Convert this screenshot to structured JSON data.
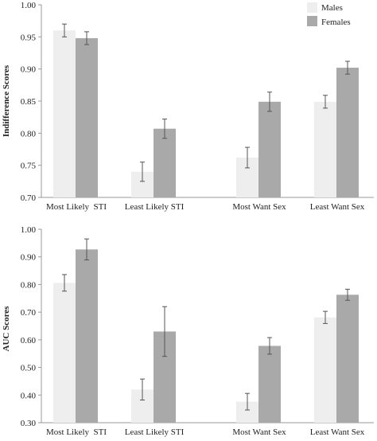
{
  "colors": {
    "male": "#eeeeee",
    "female": "#a9a9a9",
    "axis": "#999999",
    "error": "#555555"
  },
  "legend": {
    "males": "Males",
    "females": "Females",
    "placement": "top-right"
  },
  "chart_data": [
    {
      "type": "bar",
      "ylabel": "Indifference Scores",
      "ylim": [
        0.7,
        1.0
      ],
      "yticks": [
        "0.70",
        "0.75",
        "0.80",
        "0.85",
        "0.90",
        "0.95",
        "1.00"
      ],
      "categories": [
        "Most Likely  STI",
        "Least Likely STI",
        "Most Want Sex",
        "Least Want Sex"
      ],
      "series": [
        {
          "name": "Males",
          "values": [
            0.96,
            0.74,
            0.762,
            0.849
          ],
          "errors": [
            0.01,
            0.015,
            0.016,
            0.01
          ]
        },
        {
          "name": "Females",
          "values": [
            0.948,
            0.807,
            0.849,
            0.902
          ],
          "errors": [
            0.01,
            0.015,
            0.015,
            0.01
          ]
        }
      ],
      "legend": true
    },
    {
      "type": "bar",
      "ylabel": "AUC Scores",
      "ylim": [
        0.3,
        1.0
      ],
      "yticks": [
        "0.30",
        "0.40",
        "0.50",
        "0.60",
        "0.70",
        "0.80",
        "0.90",
        "1.00"
      ],
      "categories": [
        "Most Likely  STI",
        "Least Likely STI",
        "Most Want Sex",
        "Least Want Sex"
      ],
      "series": [
        {
          "name": "Males",
          "values": [
            0.806,
            0.42,
            0.376,
            0.681
          ],
          "errors": [
            0.03,
            0.038,
            0.03,
            0.022
          ]
        },
        {
          "name": "Females",
          "values": [
            0.927,
            0.63,
            0.578,
            0.763
          ],
          "errors": [
            0.038,
            0.09,
            0.03,
            0.02
          ]
        }
      ],
      "legend": false
    }
  ]
}
